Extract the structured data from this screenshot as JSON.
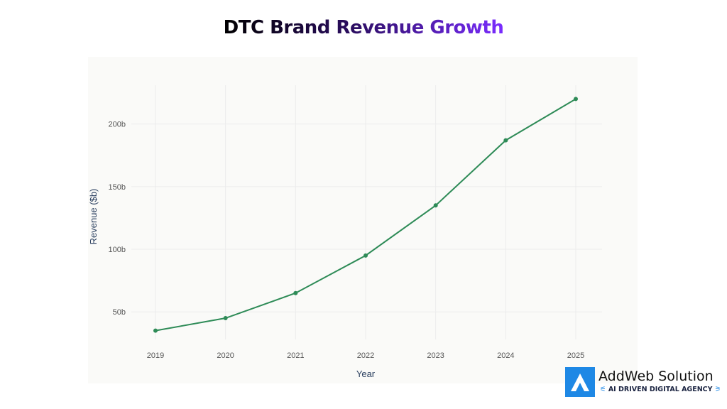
{
  "chart_data": {
    "type": "line",
    "title": "DTC Brand Revenue Growth",
    "xlabel": "Year",
    "ylabel": "Revenue ($b)",
    "categories": [
      "2019",
      "2020",
      "2021",
      "2022",
      "2023",
      "2024",
      "2025"
    ],
    "series": [
      {
        "values": [
          35,
          45,
          65,
          95,
          135,
          187,
          220
        ]
      }
    ],
    "yticks": [
      50,
      100,
      150,
      200
    ],
    "ytick_labels": [
      "50b",
      "100b",
      "150b",
      "200b"
    ],
    "ylim": [
      28,
      231
    ],
    "grid": true,
    "line_color": "#2e8b57",
    "background": "#fafaf8"
  },
  "brand": {
    "name": "AddWeb Solution",
    "tagline": "AI DRIVEN DIGITAL AGENCY",
    "color": "#1e88e5"
  }
}
